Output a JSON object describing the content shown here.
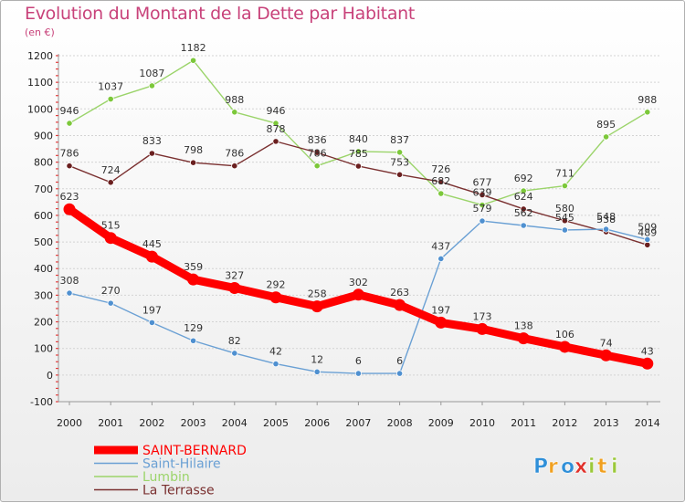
{
  "chart_data": {
    "type": "line",
    "title": "Evolution du Montant de la Dette par Habitant",
    "unit_label": "(en €)",
    "x": [
      "2000",
      "2001",
      "2002",
      "2003",
      "2004",
      "2005",
      "2006",
      "2007",
      "2008",
      "2009",
      "2010",
      "2011",
      "2012",
      "2013",
      "2014"
    ],
    "ylim": [
      -100,
      1200
    ],
    "yticks": [
      -100,
      0,
      100,
      200,
      300,
      400,
      500,
      600,
      700,
      800,
      900,
      1000,
      1100,
      1200
    ],
    "grid": "horizontal",
    "legend_position": "bottom-left",
    "series": [
      {
        "name": "SAINT-BERNARD",
        "color": "#ff0000",
        "values": [
          623,
          515,
          445,
          359,
          327,
          292,
          258,
          302,
          263,
          197,
          173,
          138,
          106,
          74,
          43
        ]
      },
      {
        "name": "Saint-Hilaire",
        "color": "#6aa0d4",
        "values": [
          308,
          270,
          197,
          129,
          82,
          42,
          12,
          6,
          6,
          437,
          579,
          562,
          545,
          548,
          509
        ]
      },
      {
        "name": "Lumbin",
        "color": "#9bd46a",
        "values": [
          946,
          1037,
          1087,
          1182,
          988,
          946,
          786,
          840,
          837,
          682,
          639,
          692,
          711,
          895,
          988
        ]
      },
      {
        "name": "La Terrasse",
        "color": "#7a3030",
        "values": [
          786,
          724,
          833,
          798,
          786,
          878,
          836,
          785,
          753,
          726,
          677,
          624,
          580,
          538,
          489
        ]
      }
    ]
  },
  "logo": {
    "letters": [
      {
        "ch": "P",
        "color": "#2f8fd8"
      },
      {
        "ch": "r",
        "color": "#f0a020"
      },
      {
        "ch": "o",
        "color": "#2f8fd8"
      },
      {
        "ch": "x",
        "color": "#e0302a"
      },
      {
        "ch": "i",
        "color": "#9bc83a"
      },
      {
        "ch": "t",
        "color": "#f0a020"
      },
      {
        "ch": "i",
        "color": "#9bc83a"
      }
    ]
  }
}
